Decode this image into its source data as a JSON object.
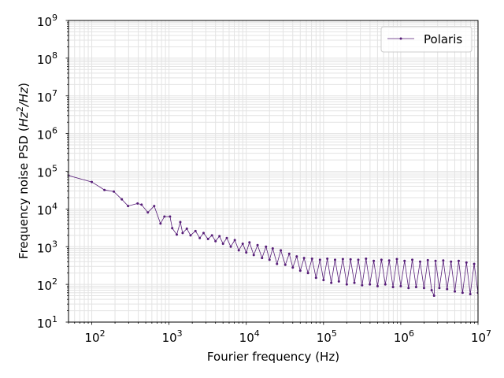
{
  "chart_data": {
    "type": "line",
    "title": "",
    "xlabel": "Fourier frequency (Hz)",
    "ylabel_prefix": "Frequency noise PSD (",
    "ylabel_math_base": "Hz",
    "ylabel_math_exp": "2",
    "ylabel_math_rest": "/Hz",
    "ylabel_suffix": ")",
    "xscale": "log",
    "yscale": "log",
    "xlim": [
      50,
      10000000
    ],
    "ylim": [
      10,
      1000000000
    ],
    "x_tick_exponents": [
      2,
      3,
      4,
      5,
      6,
      7
    ],
    "y_tick_exponents": [
      1,
      2,
      3,
      4,
      5,
      6,
      7,
      8,
      9
    ],
    "tick_base": "10",
    "grid": true,
    "legend_position": "top-right",
    "series": [
      {
        "name": "Polaris",
        "color": "#561d78",
        "marker": "dot",
        "points": [
          [
            48,
            77000
          ],
          [
            100,
            52000
          ],
          [
            146,
            32000
          ],
          [
            193,
            29000
          ],
          [
            245,
            18000
          ],
          [
            295,
            12000
          ],
          [
            392,
            14000
          ],
          [
            441,
            13000
          ],
          [
            532,
            8100
          ],
          [
            643,
            12000
          ],
          [
            776,
            4100
          ],
          [
            872,
            6300
          ],
          [
            1030,
            6300
          ],
          [
            1100,
            3100
          ],
          [
            1260,
            2100
          ],
          [
            1400,
            4500
          ],
          [
            1500,
            2300
          ],
          [
            1700,
            3000
          ],
          [
            1900,
            2000
          ],
          [
            2200,
            2600
          ],
          [
            2500,
            1700
          ],
          [
            2800,
            2300
          ],
          [
            3200,
            1600
          ],
          [
            3600,
            2000
          ],
          [
            4000,
            1400
          ],
          [
            4500,
            1900
          ],
          [
            5000,
            1200
          ],
          [
            5600,
            1700
          ],
          [
            6300,
            1000
          ],
          [
            7100,
            1500
          ],
          [
            8000,
            800
          ],
          [
            9000,
            1200
          ],
          [
            10000,
            700
          ],
          [
            11000,
            1300
          ],
          [
            12500,
            600
          ],
          [
            14000,
            1100
          ],
          [
            16000,
            500
          ],
          [
            18000,
            1000
          ],
          [
            20000,
            450
          ],
          [
            22000,
            900
          ],
          [
            25000,
            350
          ],
          [
            28000,
            800
          ],
          [
            32000,
            330
          ],
          [
            36000,
            650
          ],
          [
            40000,
            280
          ],
          [
            45000,
            550
          ],
          [
            50000,
            230
          ],
          [
            56000,
            500
          ],
          [
            63000,
            200
          ],
          [
            71000,
            480
          ],
          [
            80000,
            150
          ],
          [
            90000,
            450
          ],
          [
            100000,
            130
          ],
          [
            112000,
            480
          ],
          [
            126000,
            110
          ],
          [
            141000,
            450
          ],
          [
            158000,
            120
          ],
          [
            178000,
            470
          ],
          [
            200000,
            100
          ],
          [
            224000,
            460
          ],
          [
            251000,
            110
          ],
          [
            282000,
            450
          ],
          [
            316000,
            95
          ],
          [
            355000,
            480
          ],
          [
            398000,
            100
          ],
          [
            447000,
            420
          ],
          [
            501000,
            90
          ],
          [
            562000,
            450
          ],
          [
            631000,
            100
          ],
          [
            708000,
            430
          ],
          [
            794000,
            85
          ],
          [
            891000,
            470
          ],
          [
            1000000,
            90
          ],
          [
            1120000,
            420
          ],
          [
            1260000,
            80
          ],
          [
            1410000,
            450
          ],
          [
            1580000,
            85
          ],
          [
            1780000,
            400
          ],
          [
            2000000,
            80
          ],
          [
            2240000,
            440
          ],
          [
            2510000,
            70
          ],
          [
            2700000,
            50
          ],
          [
            2820000,
            420
          ],
          [
            3160000,
            80
          ],
          [
            3550000,
            430
          ],
          [
            3980000,
            75
          ],
          [
            4470000,
            400
          ],
          [
            5010000,
            65
          ],
          [
            5620000,
            420
          ],
          [
            6310000,
            60
          ],
          [
            7080000,
            380
          ],
          [
            7940000,
            55
          ],
          [
            8910000,
            350
          ],
          [
            10000000,
            60
          ]
        ]
      }
    ]
  }
}
